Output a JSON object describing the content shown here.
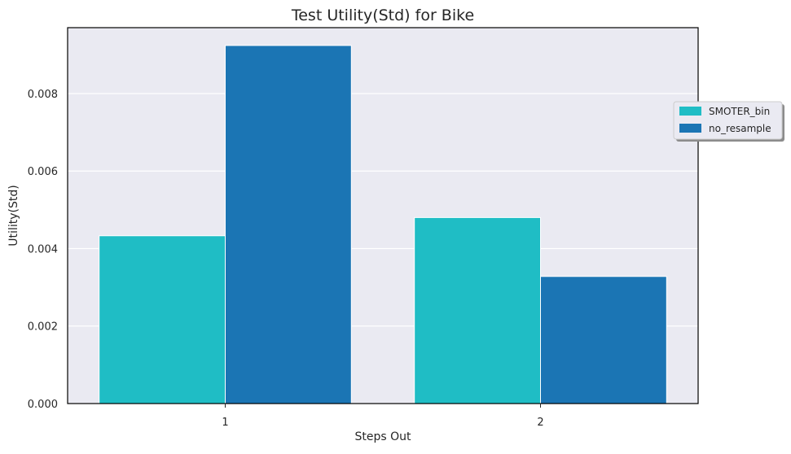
{
  "chart_data": {
    "type": "bar",
    "title": "Test Utility(Std) for Bike",
    "xlabel": "Steps Out",
    "ylabel": "Utility(Std)",
    "categories": [
      "1",
      "2"
    ],
    "series": [
      {
        "name": "SMOTER_bin",
        "values": [
          0.00433,
          0.0048
        ],
        "color": "#1fbdc5"
      },
      {
        "name": "no_resample",
        "values": [
          0.00924,
          0.00328
        ],
        "color": "#1b75b4"
      }
    ],
    "ylim": [
      0,
      0.0097
    ],
    "yticks": [
      "0.000",
      "0.002",
      "0.004",
      "0.006",
      "0.008"
    ],
    "grid": "horizontal",
    "legend_position": "right",
    "plot_background": "#eaeaf2",
    "grid_color": "#ffffff"
  }
}
